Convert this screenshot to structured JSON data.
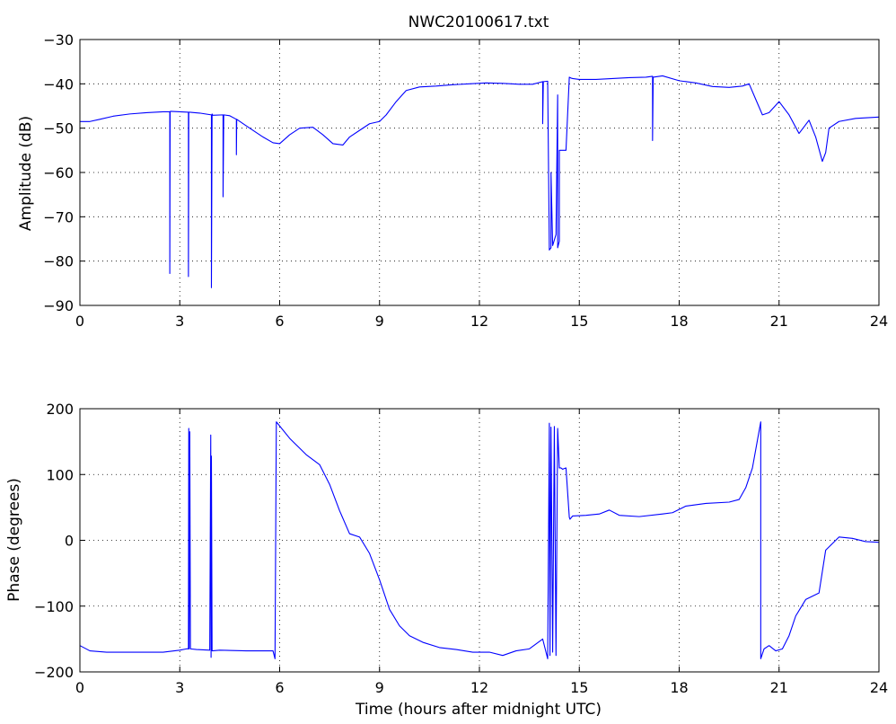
{
  "chart_data": [
    {
      "type": "line",
      "title": "NWC20100617.txt",
      "xlabel": "",
      "ylabel": "Amplitude (dB)",
      "xlim": [
        0,
        24
      ],
      "ylim": [
        -90,
        -30
      ],
      "xticks": [
        "0",
        "3",
        "6",
        "9",
        "12",
        "15",
        "18",
        "21",
        "24"
      ],
      "yticks": [
        "−30",
        "−40",
        "−50",
        "−60",
        "−70",
        "−80",
        "−90"
      ],
      "grid": true,
      "line_color": "#0000ff",
      "series": [
        {
          "x": [
            0,
            0.3,
            0.6,
            1,
            1.5,
            2,
            2.5,
            2.7,
            2.7,
            2.71,
            2.72,
            3,
            3.26,
            3.26,
            3.27,
            3.3,
            3.6,
            3.95,
            3.95,
            3.97,
            3.99,
            4.3,
            4.3,
            4.32,
            4.5,
            4.7,
            4.7,
            4.71,
            5,
            5.5,
            5.8,
            6,
            6.3,
            6.6,
            7,
            7.3,
            7.6,
            7.9,
            8.1,
            8.4,
            8.7,
            9,
            9.2,
            9.5,
            9.8,
            10.2,
            10.7,
            11.2,
            11.7,
            12.2,
            12.7,
            13.2,
            13.6,
            13.9,
            13.9,
            13.92,
            14.05,
            14.1,
            14.15,
            14.15,
            14.2,
            14.3,
            14.35,
            14.35,
            14.4,
            14.4,
            14.45,
            14.6,
            14.7,
            14.75,
            14.8,
            15,
            15.5,
            16,
            16.5,
            17,
            17.2,
            17.2,
            17.22,
            17.5,
            18,
            18.5,
            19,
            19.5,
            19.9,
            20.1,
            20.3,
            20.5,
            20.7,
            21,
            21.3,
            21.6,
            21.9,
            22.1,
            22.3,
            22.4,
            22.5,
            22.8,
            23.3,
            24
          ],
          "y": [
            -48.5,
            -48.5,
            -48,
            -47.3,
            -46.8,
            -46.5,
            -46.3,
            -46.3,
            -82.8,
            -46.3,
            -46.2,
            -46.3,
            -46.4,
            -83.5,
            -46.4,
            -46.4,
            -46.6,
            -47,
            -86,
            -46.8,
            -47.1,
            -47,
            -65.5,
            -47,
            -47.2,
            -48,
            -56,
            -48,
            -49.5,
            -52,
            -53.3,
            -53.5,
            -51.5,
            -50,
            -49.8,
            -51.5,
            -53.5,
            -53.8,
            -52,
            -50.5,
            -49,
            -48.5,
            -47,
            -44,
            -41.5,
            -40.7,
            -40.5,
            -40.2,
            -40,
            -39.8,
            -39.9,
            -40.1,
            -40.1,
            -39.5,
            -49,
            -39.5,
            -39.4,
            -77.5,
            -77,
            -60,
            -76.5,
            -74,
            -42.5,
            -77,
            -75.5,
            -55,
            -55,
            -55,
            -38.5,
            -38.7,
            -38.8,
            -39,
            -39,
            -38.8,
            -38.6,
            -38.5,
            -38.3,
            -52.8,
            -38.5,
            -38.2,
            -39.3,
            -39.8,
            -40.6,
            -40.8,
            -40.5,
            -40,
            -43.5,
            -47,
            -46.5,
            -44,
            -47,
            -51.2,
            -48.2,
            -52,
            -57.5,
            -55.5,
            -50,
            -48.5,
            -47.8,
            -47.5
          ]
        }
      ]
    },
    {
      "type": "line",
      "title": "",
      "xlabel": "Time (hours after midnight UTC)",
      "ylabel": "Phase (degrees)",
      "xlim": [
        0,
        24
      ],
      "ylim": [
        -200,
        200
      ],
      "xticks": [
        "0",
        "3",
        "6",
        "9",
        "12",
        "15",
        "18",
        "21",
        "24"
      ],
      "yticks": [
        "200",
        "100",
        "0",
        "−100",
        "−200"
      ],
      "grid": true,
      "line_color": "#0000ff",
      "series": [
        {
          "x": [
            0,
            0.3,
            0.8,
            1.5,
            2,
            2.5,
            3,
            3.2,
            3.26,
            3.27,
            3.28,
            3.3,
            3.32,
            3.5,
            3.9,
            3.93,
            3.94,
            3.95,
            3.97,
            4.2,
            5,
            5.5,
            5.8,
            5.86,
            5.9,
            6.3,
            6.8,
            7.2,
            7.5,
            7.8,
            8.1,
            8.4,
            8.7,
            9,
            9.3,
            9.6,
            9.9,
            10.3,
            10.8,
            11.3,
            11.8,
            12.3,
            12.7,
            13.1,
            13.5,
            13.9,
            14.05,
            14.1,
            14.12,
            14.15,
            14.2,
            14.25,
            14.3,
            14.35,
            14.4,
            14.45,
            14.5,
            14.6,
            14.7,
            14.72,
            14.8,
            15.2,
            15.6,
            15.9,
            16.2,
            16.8,
            17.5,
            17.8,
            18.2,
            18.8,
            19.5,
            19.8,
            20,
            20.2,
            20.45,
            20.45,
            20.55,
            20.7,
            20.9,
            21.1,
            21.3,
            21.5,
            21.8,
            22.2,
            22.4,
            22.8,
            23.2,
            23.6,
            24
          ],
          "y": [
            -160,
            -168,
            -170,
            -170,
            -170,
            -170,
            -167,
            -165,
            -165,
            170,
            -165,
            165,
            -165,
            -166,
            -167,
            160,
            -178,
            128,
            -168,
            -167,
            -168,
            -168,
            -168,
            -180,
            180,
            155,
            130,
            115,
            85,
            45,
            10,
            5,
            -20,
            -60,
            -105,
            -130,
            -145,
            -155,
            -163,
            -166,
            -170,
            -170,
            -175,
            -168,
            -165,
            -150,
            -180,
            178,
            -175,
            172,
            -170,
            173,
            -175,
            170,
            110,
            110,
            108,
            110,
            35,
            32,
            37,
            38,
            40,
            46,
            38,
            36,
            40,
            42,
            52,
            56,
            58,
            62,
            80,
            110,
            180,
            -180,
            -165,
            -160,
            -168,
            -165,
            -145,
            -115,
            -90,
            -80,
            -15,
            5,
            3,
            -2,
            -3
          ]
        }
      ]
    }
  ]
}
